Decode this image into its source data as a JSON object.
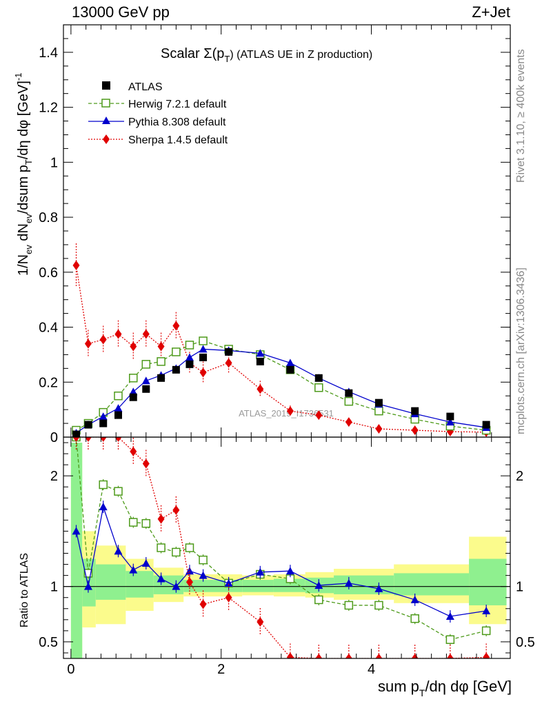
{
  "header": {
    "energy": "13000 GeV pp",
    "process": "Z+Jet"
  },
  "side_labels": {
    "rivet": "Rivet 3.1.10, ≥ 400k events",
    "mcplots": "mcplots.cern.ch [arXiv:1306.3436]"
  },
  "watermark": "ATLAS_2019_I1736531",
  "chart_data": {
    "type": "line",
    "title": "Scalar Σ(p_T) (ATLAS UE in Z production)",
    "title_main": "Scalar Σ(p",
    "title_sub": "T",
    "title_rest": ") (ATLAS UE in Z production)",
    "xlabel": "sum p_T/dη dφ [GeV]",
    "xlabel_a": "sum p",
    "xlabel_sub": "T",
    "xlabel_b": "/dη dφ [GeV]",
    "ylabel": "1/N_ev dN_ev/dsum p_T/dη dφ [GeV]^-1",
    "ylabel_parts": [
      "1/N",
      "ev",
      " dN",
      "ev",
      "/dsum p",
      "T",
      "/dη dφ  [GeV]",
      "-1"
    ],
    "ratio_ylabel": "Ratio to ATLAS",
    "xlim": [
      -0.1,
      5.85
    ],
    "ylim": [
      0,
      1.5
    ],
    "ratio_ylim": [
      0.35,
      2.35
    ],
    "x_ticks": [
      "0",
      "2",
      "4"
    ],
    "x_tick_values": [
      0,
      2,
      4
    ],
    "y_ticks": [
      "0",
      "0.2",
      "0.4",
      "0.6",
      "0.8",
      "1",
      "1.2",
      "1.4"
    ],
    "y_tick_values": [
      0,
      0.2,
      0.4,
      0.6,
      0.8,
      1.0,
      1.2,
      1.4
    ],
    "ratio_ticks": [
      "0.5",
      "1",
      "2"
    ],
    "ratio_tick_values": [
      0.5,
      1,
      2
    ],
    "legend": {
      "placement": "top-left",
      "entries": [
        {
          "label": "ATLAS",
          "key": "atlas"
        },
        {
          "label": "Herwig 7.2.1 default",
          "key": "herwig"
        },
        {
          "label": "Pythia 8.308 default",
          "key": "pythia"
        },
        {
          "label": "Sherpa 1.4.5 default",
          "key": "sherpa"
        }
      ]
    },
    "colors": {
      "atlas": "#000000",
      "herwig": "#4d9a1a",
      "pythia": "#0000cc",
      "sherpa": "#e00000",
      "band_green": "#8ff08f",
      "band_yellow": "#fbfb8c"
    },
    "atlas": {
      "x": [
        0.07,
        0.23,
        0.43,
        0.63,
        0.83,
        1.0,
        1.2,
        1.4,
        1.58,
        1.76,
        2.1,
        2.52,
        2.92,
        3.3,
        3.7,
        4.1,
        4.58,
        5.05,
        5.53
      ],
      "y": [
        0.01,
        0.045,
        0.05,
        0.08,
        0.145,
        0.175,
        0.215,
        0.245,
        0.265,
        0.29,
        0.31,
        0.275,
        0.245,
        0.215,
        0.16,
        0.125,
        0.095,
        0.075,
        0.045
      ]
    },
    "herwig": {
      "x": [
        0.07,
        0.23,
        0.43,
        0.63,
        0.83,
        1.0,
        1.2,
        1.4,
        1.58,
        1.76,
        2.1,
        2.52,
        2.92,
        3.3,
        3.7,
        4.1,
        4.58,
        5.05,
        5.53
      ],
      "y": [
        0.025,
        0.05,
        0.09,
        0.15,
        0.215,
        0.265,
        0.275,
        0.31,
        0.335,
        0.35,
        0.32,
        0.3,
        0.245,
        0.18,
        0.13,
        0.095,
        0.065,
        0.04,
        0.025
      ]
    },
    "pythia": {
      "x": [
        0.07,
        0.23,
        0.43,
        0.63,
        0.83,
        1.0,
        1.2,
        1.4,
        1.58,
        1.76,
        2.1,
        2.52,
        2.92,
        3.3,
        3.7,
        4.1,
        4.58,
        5.05,
        5.53
      ],
      "y": [
        0.015,
        0.045,
        0.075,
        0.105,
        0.165,
        0.205,
        0.225,
        0.25,
        0.29,
        0.32,
        0.315,
        0.305,
        0.27,
        0.215,
        0.165,
        0.12,
        0.085,
        0.055,
        0.035
      ]
    },
    "sherpa": {
      "x": [
        0.07,
        0.23,
        0.43,
        0.63,
        0.83,
        1.0,
        1.2,
        1.4,
        1.58,
        1.76,
        2.1,
        2.52,
        2.92,
        3.3,
        3.7,
        4.1,
        4.58,
        5.05,
        5.53
      ],
      "y": [
        0.625,
        0.34,
        0.355,
        0.375,
        0.33,
        0.375,
        0.33,
        0.405,
        0.27,
        0.235,
        0.27,
        0.175,
        0.095,
        0.08,
        0.055,
        0.03,
        0.025,
        0.02,
        0.018
      ],
      "err": [
        0.08,
        0.05,
        0.05,
        0.05,
        0.05,
        0.05,
        0.05,
        0.05,
        0.04,
        0.04,
        0.04,
        0.03,
        0.02,
        0.015,
        0.01,
        0.008,
        0.006,
        0.005,
        0.004
      ]
    },
    "ratio": {
      "herwig": [
        2.5,
        1.12,
        1.92,
        1.86,
        1.58,
        1.57,
        1.35,
        1.31,
        1.35,
        1.24,
        1.03,
        1.11,
        1.07,
        0.88,
        0.83,
        0.83,
        0.71,
        0.52,
        0.6
      ],
      "pythia": [
        1.5,
        1.0,
        1.72,
        1.32,
        1.15,
        1.21,
        1.07,
        1.0,
        1.14,
        1.1,
        1.03,
        1.13,
        1.14,
        1.01,
        1.03,
        0.98,
        0.88,
        0.73,
        0.78
      ],
      "sherpa": [
        5.0,
        5.0,
        3.0,
        2.6,
        2.22,
        2.11,
        1.61,
        1.69,
        1.04,
        0.84,
        0.9,
        0.68,
        0.36,
        0.3,
        0.3,
        0.3,
        0.3,
        0.3,
        0.36
      ],
      "band_edges": [
        0.0,
        0.15,
        0.33,
        0.73,
        1.1,
        1.5,
        2.28,
        2.7,
        3.12,
        3.5,
        4.3,
        5.3,
        5.8
      ],
      "band_green": [
        [
          0.35,
          2.3
        ],
        [
          0.82,
          1.25
        ],
        [
          0.88,
          1.2
        ],
        [
          0.9,
          1.14
        ],
        [
          0.93,
          1.1
        ],
        [
          0.95,
          1.06
        ],
        [
          0.95,
          1.06
        ],
        [
          0.95,
          1.07
        ],
        [
          0.94,
          1.08
        ],
        [
          0.93,
          1.1
        ],
        [
          0.92,
          1.12
        ],
        [
          0.83,
          1.25
        ]
      ],
      "band_yellow": [
        [
          0.35,
          2.3
        ],
        [
          0.63,
          1.5
        ],
        [
          0.66,
          1.37
        ],
        [
          0.78,
          1.25
        ],
        [
          0.86,
          1.17
        ],
        [
          0.91,
          1.11
        ],
        [
          0.92,
          1.1
        ],
        [
          0.91,
          1.11
        ],
        [
          0.9,
          1.13
        ],
        [
          0.88,
          1.16
        ],
        [
          0.85,
          1.2
        ],
        [
          0.66,
          1.45
        ]
      ]
    }
  }
}
